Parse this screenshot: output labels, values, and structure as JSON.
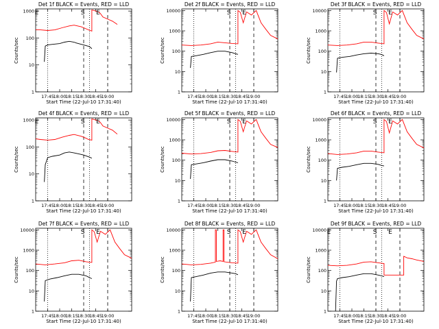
{
  "chart_data": [
    {
      "type": "line",
      "title": "Det 1f BLACK = Events, RED = LLD",
      "ylabel": "Counts/sec",
      "xlabel": "Start Time (22-Jul-10 17:31:40)",
      "xticks": [
        "17:45",
        "18:00",
        "18:15",
        "18:30",
        "18:45",
        "19:00"
      ],
      "yticks": [
        "1",
        "10",
        "100",
        "1000"
      ],
      "ylim": [
        1,
        1200
      ],
      "markers": [
        "E",
        "S",
        "E"
      ],
      "series": [
        {
          "color": "#000000",
          "x": [
            17.68,
            17.7,
            17.75,
            17.85,
            18.0,
            18.1,
            18.2,
            18.3,
            18.35,
            18.5,
            18.62,
            18.67
          ],
          "y": [
            13,
            50,
            55,
            58,
            62,
            70,
            75,
            70,
            65,
            55,
            48,
            40
          ]
        },
        {
          "color": "#ff0000",
          "x": [
            17.5,
            17.6,
            17.75,
            17.9,
            18.05,
            18.2,
            18.3,
            18.45,
            18.55,
            18.6,
            18.67,
            18.67,
            18.75,
            18.82,
            18.85,
            18.9,
            19.0,
            19.1,
            19.2
          ],
          "y": [
            200,
            200,
            190,
            200,
            240,
            280,
            300,
            260,
            220,
            200,
            180,
            1100,
            1000,
            900,
            800,
            600,
            500,
            420,
            320
          ]
        }
      ]
    },
    {
      "type": "line",
      "title": "Det 2f BLACK = Events, RED = LLD",
      "ylabel": "Counts/sec",
      "xlabel": "Start Time (22-Jul-10 17:31:40)",
      "xticks": [
        "17:45",
        "18:00",
        "18:15",
        "18:30",
        "18:45",
        "19:00"
      ],
      "yticks": [
        "1",
        "10",
        "100",
        "1000",
        "10000"
      ],
      "ylim": [
        1,
        12000
      ],
      "markers": [
        "S",
        "E"
      ],
      "series": [
        {
          "color": "#000000",
          "x": [
            17.68,
            17.7,
            17.8,
            17.95,
            18.1,
            18.25,
            18.4,
            18.55,
            18.62,
            18.67
          ],
          "y": [
            15,
            55,
            60,
            70,
            85,
            100,
            100,
            85,
            75,
            70
          ]
        },
        {
          "color": "#ff0000",
          "x": [
            17.5,
            17.7,
            17.9,
            18.1,
            18.25,
            18.4,
            18.55,
            18.67,
            18.67,
            18.72,
            18.78,
            18.85,
            18.95,
            19.05,
            19.15,
            19.25,
            19.35,
            19.5
          ],
          "y": [
            200,
            190,
            200,
            230,
            280,
            260,
            240,
            230,
            10000,
            8000,
            2500,
            8500,
            6000,
            10000,
            2500,
            1200,
            600,
            400
          ]
        }
      ]
    },
    {
      "type": "line",
      "title": "Det 3f BLACK = Events, RED = LLD",
      "ylabel": "Counts/sec",
      "xlabel": "Start Time (22-Jul-10 17:31:40)",
      "xticks": [
        "17:45",
        "18:00",
        "18:15",
        "18:30",
        "18:45",
        "19:00"
      ],
      "yticks": [
        "1",
        "10",
        "100",
        "1000",
        "10000"
      ],
      "ylim": [
        1,
        12000
      ],
      "markers": [
        "S",
        "E"
      ],
      "series": [
        {
          "color": "#000000",
          "x": [
            17.68,
            17.7,
            17.8,
            17.95,
            18.1,
            18.25,
            18.4,
            18.55,
            18.62,
            18.67
          ],
          "y": [
            9,
            45,
            50,
            55,
            65,
            75,
            80,
            75,
            68,
            60
          ]
        },
        {
          "color": "#ff0000",
          "x": [
            17.5,
            17.7,
            17.9,
            18.1,
            18.25,
            18.4,
            18.55,
            18.67,
            18.67,
            18.72,
            18.78,
            18.85,
            18.95,
            19.05,
            19.15,
            19.25,
            19.35,
            19.5
          ],
          "y": [
            200,
            190,
            200,
            230,
            280,
            280,
            250,
            230,
            10000,
            8000,
            2200,
            8500,
            6000,
            10000,
            2500,
            1200,
            600,
            400
          ]
        }
      ]
    },
    {
      "type": "line",
      "title": "Det 4f BLACK = Events, RED = LLD",
      "ylabel": "Counts/sec",
      "xlabel": "Start Time (22-Jul-10 17:31:40)",
      "xticks": [
        "17:45",
        "18:00",
        "18:15",
        "18:30",
        "18:45",
        "19:00"
      ],
      "yticks": [
        "1",
        "10",
        "100",
        "1000"
      ],
      "ylim": [
        1,
        1200
      ],
      "markers": [
        "E",
        "S",
        "E"
      ],
      "series": [
        {
          "color": "#000000",
          "x": [
            17.68,
            17.7,
            17.75,
            17.85,
            18.0,
            18.1,
            18.2,
            18.3,
            18.4,
            18.5,
            18.62,
            18.67
          ],
          "y": [
            5,
            22,
            40,
            45,
            50,
            60,
            65,
            60,
            55,
            50,
            42,
            38
          ]
        },
        {
          "color": "#ff0000",
          "x": [
            17.5,
            17.6,
            17.75,
            17.9,
            18.05,
            18.2,
            18.3,
            18.45,
            18.55,
            18.6,
            18.67,
            18.67,
            18.75,
            18.82,
            18.85,
            18.9,
            19.0,
            19.1,
            19.2
          ],
          "y": [
            200,
            190,
            180,
            190,
            230,
            270,
            290,
            250,
            210,
            190,
            180,
            1100,
            1000,
            900,
            800,
            600,
            500,
            420,
            300
          ]
        }
      ]
    },
    {
      "type": "line",
      "title": "Det 5f BLACK = Events, RED = LLD",
      "ylabel": "Counts/sec",
      "xlabel": "Start Time (22-Jul-10 17:31:40)",
      "xticks": [
        "17:45",
        "18:00",
        "18:15",
        "18:30",
        "18:45",
        "19:00"
      ],
      "yticks": [
        "1",
        "10",
        "100",
        "1000",
        "10000"
      ],
      "ylim": [
        1,
        12000
      ],
      "markers": [
        "S",
        "E"
      ],
      "series": [
        {
          "color": "#000000",
          "x": [
            17.68,
            17.7,
            17.8,
            17.95,
            18.1,
            18.25,
            18.4,
            18.55,
            18.62,
            18.67
          ],
          "y": [
            12,
            60,
            65,
            75,
            90,
            105,
            105,
            90,
            80,
            75
          ]
        },
        {
          "color": "#ff0000",
          "x": [
            17.5,
            17.7,
            17.9,
            18.1,
            18.25,
            18.4,
            18.55,
            18.67,
            18.67,
            18.72,
            18.78,
            18.85,
            18.95,
            19.05,
            19.15,
            19.25,
            19.35,
            19.5
          ],
          "y": [
            220,
            200,
            210,
            240,
            290,
            300,
            270,
            250,
            10000,
            8000,
            2500,
            8500,
            6000,
            10000,
            2500,
            1200,
            600,
            420
          ]
        }
      ]
    },
    {
      "type": "line",
      "title": "Det 6f BLACK = Events, RED = LLD",
      "ylabel": "Counts/sec",
      "xlabel": "Start Time (22-Jul-10 17:31:40)",
      "xticks": [
        "17:45",
        "18:00",
        "18:15",
        "18:30",
        "18:45",
        "19:00"
      ],
      "yticks": [
        "1",
        "10",
        "100",
        "1000",
        "10000"
      ],
      "ylim": [
        1,
        12000
      ],
      "markers": [
        "S",
        "E"
      ],
      "series": [
        {
          "color": "#000000",
          "x": [
            17.68,
            17.7,
            17.8,
            17.95,
            18.1,
            18.25,
            18.4,
            18.55,
            18.62,
            18.67
          ],
          "y": [
            10,
            40,
            45,
            50,
            60,
            70,
            70,
            62,
            55,
            52
          ]
        },
        {
          "color": "#ff0000",
          "x": [
            17.5,
            17.7,
            17.9,
            18.1,
            18.25,
            18.4,
            18.55,
            18.67,
            18.67,
            18.72,
            18.78,
            18.85,
            18.95,
            19.05,
            19.15,
            19.25,
            19.35,
            19.5
          ],
          "y": [
            210,
            190,
            200,
            230,
            280,
            280,
            250,
            230,
            10000,
            8000,
            2200,
            8500,
            6000,
            10000,
            2500,
            1200,
            600,
            400
          ]
        }
      ]
    },
    {
      "type": "line",
      "title": "Det 7f BLACK = Events, RED = LLD",
      "ylabel": "Counts/sec",
      "xlabel": "Start Time (22-Jul-10 17:31:40)",
      "xticks": [
        "17:45",
        "18:00",
        "18:15",
        "18:30",
        "18:45",
        "19:00"
      ],
      "yticks": [
        "1",
        "10",
        "100",
        "1000",
        "10000"
      ],
      "ylim": [
        1,
        12000
      ],
      "markers": [
        "S",
        "E"
      ],
      "series": [
        {
          "color": "#000000",
          "x": [
            17.68,
            17.7,
            17.8,
            17.95,
            18.1,
            18.25,
            18.4,
            18.55,
            18.62,
            18.67
          ],
          "y": [
            3,
            32,
            38,
            45,
            55,
            65,
            65,
            55,
            45,
            40
          ]
        },
        {
          "color": "#ff0000",
          "x": [
            17.5,
            17.7,
            17.9,
            18.1,
            18.25,
            18.4,
            18.55,
            18.67,
            18.67,
            18.72,
            18.78,
            18.85,
            18.95,
            19.05,
            19.15,
            19.25,
            19.35,
            19.5
          ],
          "y": [
            210,
            190,
            210,
            240,
            300,
            320,
            270,
            250,
            10000,
            8000,
            2500,
            8500,
            6000,
            10000,
            2500,
            1200,
            600,
            400
          ]
        }
      ]
    },
    {
      "type": "line",
      "title": "Det 8f BLACK = Events, RED = LLD",
      "ylabel": "Counts/sec",
      "xlabel": "Start Time (22-Jul-10 17:31:40)",
      "xticks": [
        "17:45",
        "18:00",
        "18:15",
        "18:30",
        "18:45",
        "19:00"
      ],
      "yticks": [
        "1",
        "10",
        "100",
        "1000",
        "10000"
      ],
      "ylim": [
        1,
        12000
      ],
      "markers": [
        "S",
        "E"
      ],
      "series": [
        {
          "color": "#000000",
          "x": [
            17.68,
            17.7,
            17.8,
            17.95,
            18.1,
            18.25,
            18.4,
            18.55,
            18.62,
            18.67
          ],
          "y": [
            3,
            45,
            50,
            60,
            75,
            85,
            85,
            75,
            70,
            62
          ]
        },
        {
          "color": "#ff0000",
          "x": [
            17.5,
            17.7,
            17.9,
            18.1,
            18.2,
            18.2,
            18.22,
            18.22,
            18.3,
            18.36,
            18.36,
            18.38,
            18.38,
            18.55,
            18.67,
            18.67,
            18.72,
            18.78,
            18.85,
            18.95,
            19.05,
            19.15,
            19.25,
            19.35,
            19.5
          ],
          "y": [
            210,
            190,
            200,
            230,
            260,
            10000,
            10000,
            280,
            300,
            280,
            10000,
            10000,
            270,
            240,
            230,
            10000,
            8000,
            2500,
            8500,
            6000,
            10000,
            2500,
            1200,
            600,
            380
          ]
        }
      ]
    },
    {
      "type": "line",
      "title": "Det 9f BLACK = Events, RED = LLD",
      "ylabel": "Counts/sec",
      "xlabel": "Start Time (22-Jul-10 17:31:40)",
      "xticks": [
        "17:45",
        "18:00",
        "18:15",
        "18:30",
        "18:45",
        "19:00"
      ],
      "yticks": [
        "1",
        "10",
        "100",
        "1000",
        "10000"
      ],
      "ylim": [
        1,
        12000
      ],
      "markers": [
        "E",
        "S",
        "E"
      ],
      "series": [
        {
          "color": "#000000",
          "x": [
            17.66,
            17.68,
            17.7,
            17.8,
            17.95,
            18.1,
            18.25,
            18.4,
            18.55,
            18.62,
            18.67
          ],
          "y": [
            1,
            30,
            40,
            45,
            50,
            60,
            70,
            70,
            60,
            55,
            50
          ]
        },
        {
          "color": "#ff0000",
          "x": [
            17.5,
            17.7,
            17.9,
            18.1,
            18.25,
            18.4,
            18.55,
            18.67,
            18.67,
            19.08,
            19.08,
            19.15,
            19.25,
            19.35,
            19.5
          ],
          "y": [
            180,
            170,
            180,
            210,
            260,
            270,
            240,
            220,
            60,
            60,
            500,
            420,
            380,
            330,
            280
          ]
        }
      ]
    }
  ]
}
